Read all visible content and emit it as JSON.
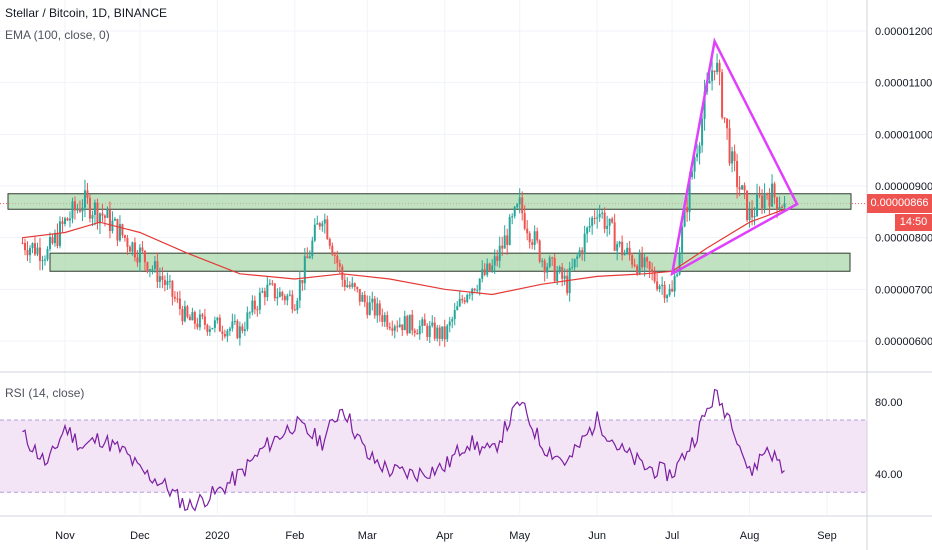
{
  "header": {
    "symbol_line": "Stellar / Bitcoin, 1D, BINANCE",
    "ema_line": "EMA (100, close, 0)",
    "rsi_line": "RSI (14, close)"
  },
  "price_axis": {
    "ticks": [
      "0.00001200",
      "0.00001100",
      "0.00001000",
      "0.00000900",
      "0.00000800",
      "0.00000700",
      "0.00000600"
    ],
    "current_price_label": "0.00000866",
    "countdown_label": "14:50"
  },
  "rsi_axis": {
    "ticks": [
      "80.00",
      "40.00"
    ]
  },
  "time_axis": {
    "ticks": [
      "Nov",
      "Dec",
      "2020",
      "Feb",
      "Mar",
      "Apr",
      "May",
      "Jun",
      "Jul",
      "Aug",
      "Sep"
    ]
  },
  "colors": {
    "up": "#26a69a",
    "down": "#ef5350",
    "ema": "#e53935",
    "rsi": "#7b1fa2",
    "rsi_band_fill": "#f3e5f5",
    "zone_fill": "#a5d6a7",
    "triangle": "#e040fb",
    "current_price_badge": "#ef5350"
  },
  "chart_data": [
    {
      "type": "candlestick",
      "series": [
        {
          "name": "Stellar / Bitcoin, 1D, BINANCE",
          "x": [
            "Oct 15",
            "Oct 25",
            "Nov 1",
            "Nov 8",
            "Nov 15",
            "Nov 25",
            "Dec 1",
            "Dec 10",
            "Dec 20",
            "Jan 1",
            "Jan 10",
            "Jan 20",
            "Feb 1",
            "Feb 12",
            "Feb 20",
            "Mar 1",
            "Mar 10",
            "Mar 20",
            "Apr 1",
            "Apr 10",
            "Apr 20",
            "May 1",
            "May 10",
            "May 20",
            "Jun 1",
            "Jun 10",
            "Jun 20",
            "Jul 1",
            "Jul 10",
            "Jul 18",
            "Jul 25",
            "Aug 1",
            "Aug 8",
            "Aug 15"
          ],
          "close": [
            7.9e-06,
            7.7e-06,
            8.3e-06,
            8.7e-06,
            8.5e-06,
            8e-06,
            7.7e-06,
            7.2e-06,
            6.4e-06,
            6.3e-06,
            6.2e-06,
            7e-06,
            6.8e-06,
            8.5e-06,
            7.2e-06,
            6.7e-06,
            6.4e-06,
            6.3e-06,
            6.1e-06,
            7e-06,
            7.4e-06,
            8.6e-06,
            7.6e-06,
            7.1e-06,
            8.6e-06,
            7.8e-06,
            7.4e-06,
            6.9e-06,
            9.6e-06,
            1.15e-05,
            9.4e-06,
            8.4e-06,
            8.9e-06,
            8.66e-06
          ]
        },
        {
          "name": "EMA (100, close, 0)",
          "x": [
            "Oct 15",
            "Nov 1",
            "Nov 15",
            "Dec 1",
            "Dec 20",
            "Jan 10",
            "Feb 1",
            "Feb 20",
            "Mar 10",
            "Apr 1",
            "Apr 20",
            "May 10",
            "Jun 1",
            "Jun 20",
            "Jul 1",
            "Jul 15",
            "Aug 1",
            "Aug 15"
          ],
          "values": [
            8e-06,
            8.1e-06,
            8.3e-06,
            8.1e-06,
            7.7e-06,
            7.3e-06,
            7.2e-06,
            7.3e-06,
            7.2e-06,
            7e-06,
            6.9e-06,
            7.1e-06,
            7.25e-06,
            7.3e-06,
            7.35e-06,
            7.8e-06,
            8.3e-06,
            8.55e-06
          ]
        }
      ],
      "ylim": [
        5.4e-06,
        1.26e-05
      ],
      "annotations": {
        "resistance_zone": [
          8.55e-06,
          8.85e-06
        ],
        "support_zone": [
          7.35e-06,
          7.7e-06
        ],
        "triangle": [
          {
            "x": "Jul 1",
            "y": 7.3e-06
          },
          {
            "x": "Jul 18",
            "y": 1.18e-05
          },
          {
            "x": "Aug 20",
            "y": 8.65e-06
          }
        ]
      }
    },
    {
      "type": "line",
      "series": [
        {
          "name": "RSI (14, close)",
          "x": [
            "Oct 15",
            "Oct 25",
            "Nov 1",
            "Nov 8",
            "Nov 15",
            "Nov 25",
            "Dec 1",
            "Dec 10",
            "Dec 20",
            "Jan 1",
            "Jan 10",
            "Jan 20",
            "Feb 1",
            "Feb 12",
            "Feb 20",
            "Mar 1",
            "Mar 10",
            "Mar 20",
            "Apr 1",
            "Apr 10",
            "Apr 20",
            "May 1",
            "May 10",
            "May 20",
            "Jun 1",
            "Jun 10",
            "Jun 20",
            "Jul 1",
            "Jul 10",
            "Jul 18",
            "Jul 25",
            "Aug 1",
            "Aug 8",
            "Aug 15"
          ],
          "values": [
            62,
            45,
            66,
            55,
            60,
            52,
            42,
            35,
            22,
            30,
            40,
            55,
            68,
            58,
            78,
            50,
            42,
            40,
            44,
            58,
            52,
            80,
            56,
            46,
            70,
            54,
            44,
            40,
            60,
            84,
            70,
            40,
            55,
            42
          ]
        }
      ],
      "ylim": [
        18,
        96
      ],
      "bands": [
        30,
        70
      ]
    }
  ]
}
